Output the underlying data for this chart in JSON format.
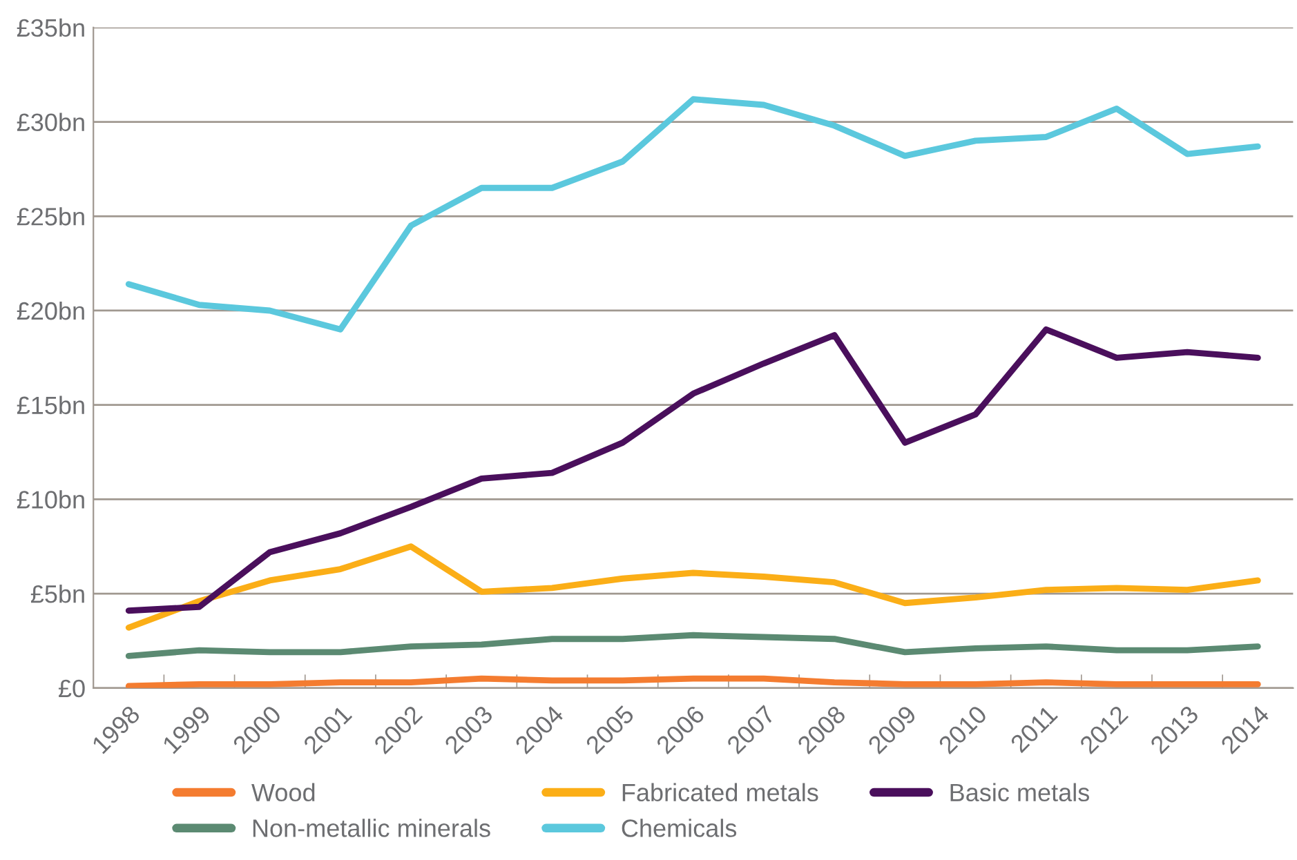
{
  "chart_data": {
    "type": "line",
    "categories": [
      "1998",
      "1999",
      "2000",
      "2001",
      "2002",
      "2003",
      "2004",
      "2005",
      "2006",
      "2007",
      "2008",
      "2009",
      "2010",
      "2011",
      "2012",
      "2013",
      "2014"
    ],
    "series": [
      {
        "name": "Wood",
        "color": "#f47c30",
        "values": [
          0.1,
          0.2,
          0.2,
          0.3,
          0.3,
          0.5,
          0.4,
          0.4,
          0.5,
          0.5,
          0.3,
          0.2,
          0.2,
          0.3,
          0.2,
          0.2,
          0.2
        ]
      },
      {
        "name": "Non-metallic minerals",
        "color": "#5b8a72",
        "values": [
          1.7,
          2.0,
          1.9,
          1.9,
          2.2,
          2.3,
          2.6,
          2.6,
          2.8,
          2.7,
          2.6,
          1.9,
          2.1,
          2.2,
          2.0,
          2.0,
          2.2
        ]
      },
      {
        "name": "Fabricated metals",
        "color": "#fbae17",
        "values": [
          3.2,
          4.6,
          5.7,
          6.3,
          7.5,
          5.1,
          5.3,
          5.8,
          6.1,
          5.9,
          5.6,
          4.5,
          4.8,
          5.2,
          5.3,
          5.2,
          5.7
        ]
      },
      {
        "name": "Chemicals",
        "color": "#5bc8dd",
        "values": [
          21.4,
          20.3,
          20.0,
          19.0,
          24.5,
          26.5,
          26.5,
          27.9,
          31.2,
          30.9,
          29.8,
          28.2,
          29.0,
          29.2,
          30.7,
          28.3,
          28.7
        ]
      },
      {
        "name": "Basic metals",
        "color": "#4a0f5c",
        "values": [
          4.1,
          4.3,
          7.2,
          8.2,
          9.6,
          11.1,
          11.4,
          13.0,
          15.6,
          17.2,
          18.7,
          13.0,
          14.5,
          19.0,
          17.5,
          17.8,
          17.5
        ]
      }
    ],
    "ylim": [
      0,
      35
    ],
    "yticks": [
      {
        "value": 0,
        "label": "£0"
      },
      {
        "value": 5,
        "label": "£5bn"
      },
      {
        "value": 10,
        "label": "£10bn"
      },
      {
        "value": 15,
        "label": "£15bn"
      },
      {
        "value": 20,
        "label": "£20bn"
      },
      {
        "value": 25,
        "label": "£25bn"
      },
      {
        "value": 30,
        "label": "£30bn"
      },
      {
        "value": 35,
        "label": "£35bn"
      }
    ],
    "grid": "y",
    "legend": "bottom",
    "marker": "none",
    "line_style": "solid"
  }
}
